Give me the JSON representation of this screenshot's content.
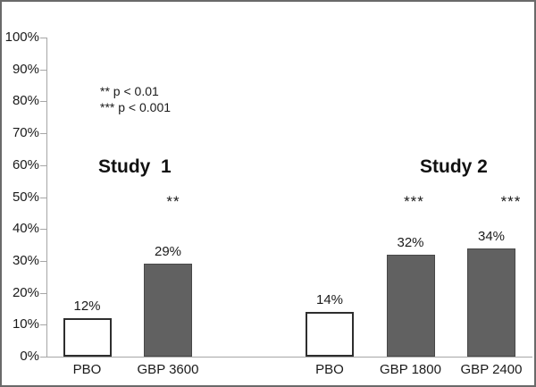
{
  "chart_data": {
    "type": "bar",
    "title": "",
    "yaxis": {
      "min": 0,
      "max": 100,
      "tick_step": 10,
      "tick_labels": [
        "0%",
        "10%",
        "20%",
        "30%",
        "40%",
        "50%",
        "60%",
        "70%",
        "80%",
        "90%",
        "100%"
      ]
    },
    "grid": "off",
    "legend_position": "none",
    "annotations": [
      "** p < 0.01",
      "*** p < 0.001"
    ],
    "groups": [
      {
        "label": "Study  1",
        "bars": [
          {
            "category": "PBO",
            "value": 12,
            "value_label": "12%",
            "fill": "white",
            "significance": ""
          },
          {
            "category": "GBP 3600",
            "value": 29,
            "value_label": "29%",
            "fill": "gray",
            "significance": "**"
          }
        ]
      },
      {
        "label": "Study 2",
        "bars": [
          {
            "category": "PBO",
            "value": 14,
            "value_label": "14%",
            "fill": "white",
            "significance": ""
          },
          {
            "category": "GBP 1800",
            "value": 32,
            "value_label": "32%",
            "fill": "gray",
            "significance": "***"
          },
          {
            "category": "GBP 2400",
            "value": 34,
            "value_label": "34%",
            "fill": "gray",
            "significance": "***"
          }
        ]
      }
    ],
    "colors": {
      "bar_gray": "#616161",
      "bar_white": "#ffffff",
      "axis": "#a6a6a6",
      "text": "#1a1a1a"
    }
  }
}
